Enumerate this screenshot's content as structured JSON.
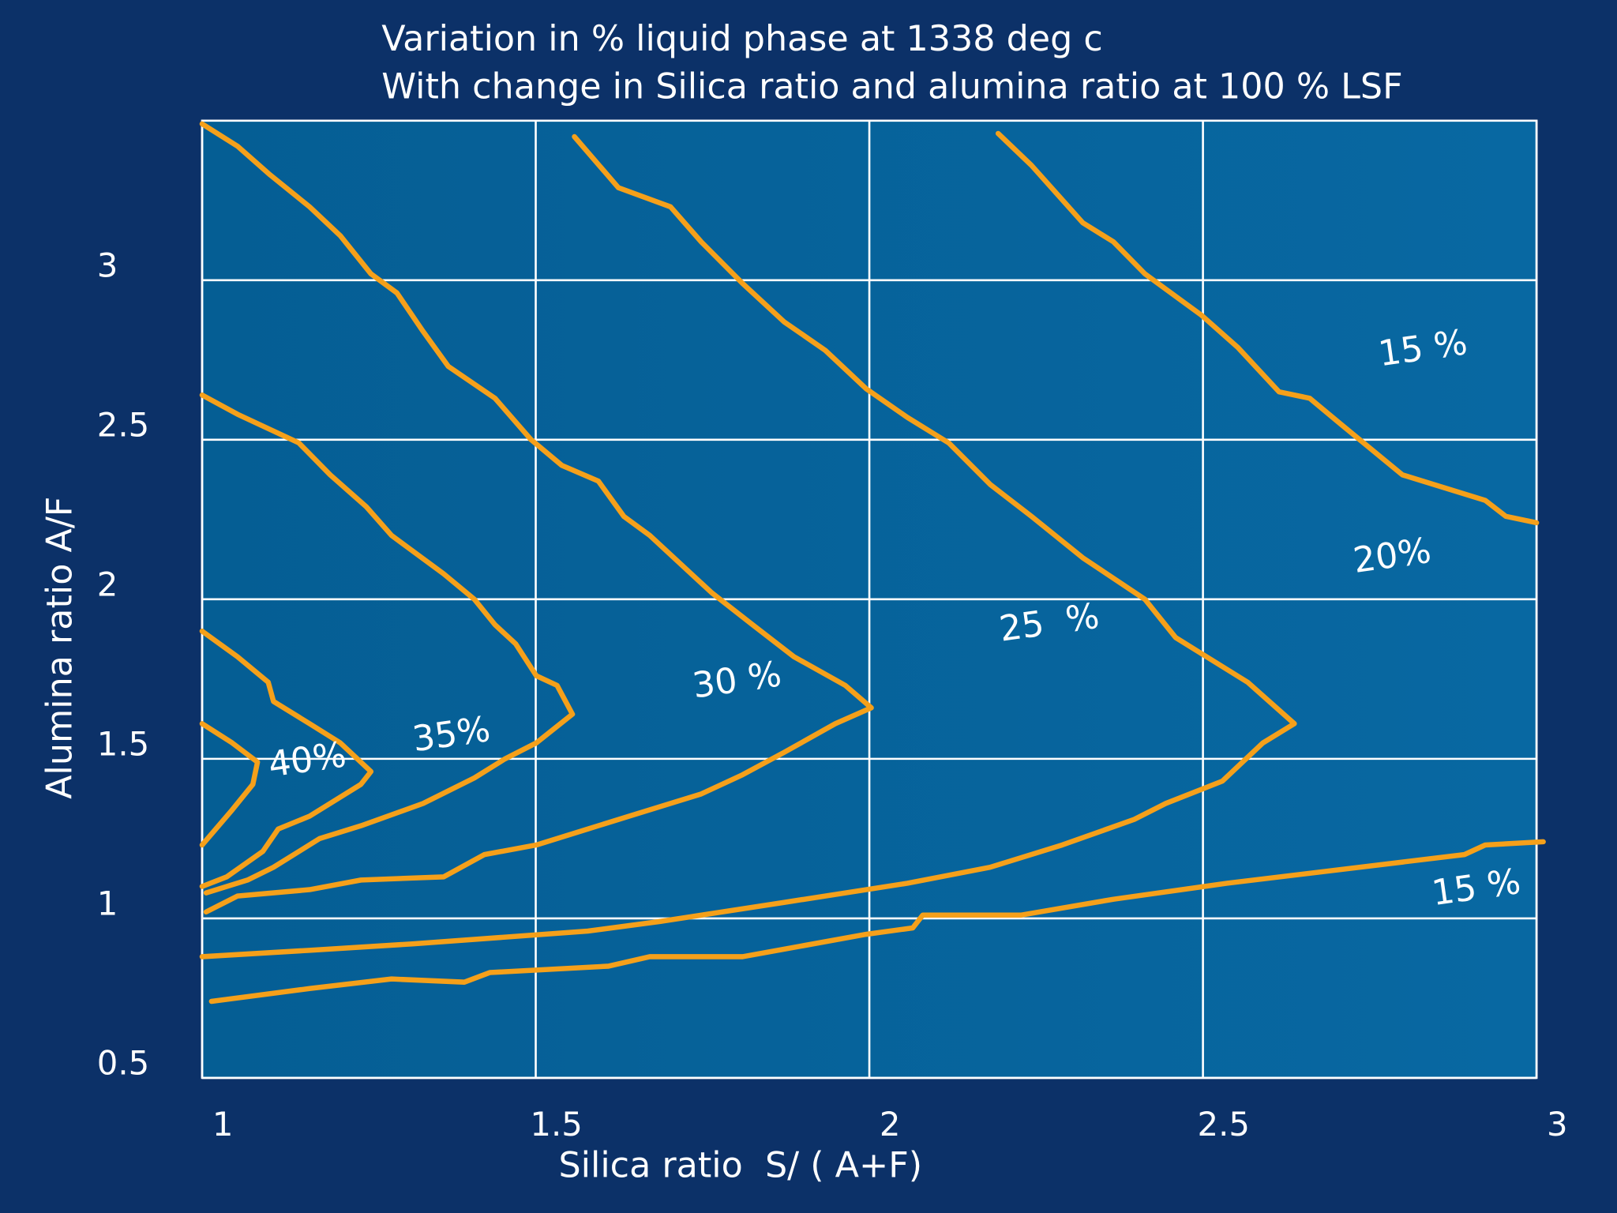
{
  "chart_data": {
    "type": "contour",
    "title": "Variation in % liquid phase at 1338 deg c",
    "subtitle": "With change in Silica ratio and alumina ratio at 100 % LSF",
    "x_label": "Silica ratio  S/ ( A+F)",
    "y_label": "Alumina ratio A/F",
    "xlim": [
      1,
      3
    ],
    "xticks": [
      1,
      1.5,
      2,
      2.5,
      3
    ],
    "ylim": [
      0.5,
      3.5
    ],
    "yticks": [
      0.5,
      1,
      1.5,
      2,
      2.5,
      3
    ],
    "grid": true,
    "series": [
      {
        "color": "#f5a01a",
        "x": [
          1.0,
          1.053,
          1.102,
          1.161,
          1.207,
          1.253,
          1.292,
          1.331,
          1.369,
          1.439,
          1.493,
          1.539,
          1.594,
          1.632,
          1.671,
          1.764,
          1.825,
          1.887,
          1.964,
          2.003,
          1.949,
          1.872,
          1.81,
          1.748,
          1.64,
          1.578,
          1.501,
          1.423,
          1.362,
          1.238,
          1.161,
          1.053,
          1.006
        ],
        "values": [
          3.49,
          3.42,
          3.33,
          3.23,
          3.14,
          3.02,
          2.96,
          2.84,
          2.73,
          2.63,
          2.5,
          2.42,
          2.37,
          2.26,
          2.2,
          2.02,
          1.92,
          1.82,
          1.73,
          1.66,
          1.61,
          1.52,
          1.45,
          1.39,
          1.32,
          1.28,
          1.23,
          1.2,
          1.13,
          1.12,
          1.09,
          1.07,
          1.02
        ]
      },
      {
        "color": "#f5a01a",
        "x": [
          1.0,
          1.053,
          1.145,
          1.192,
          1.246,
          1.284,
          1.362,
          1.408,
          1.439,
          1.47,
          1.501,
          1.532,
          1.555,
          1.501,
          1.454,
          1.408,
          1.331,
          1.238,
          1.176,
          1.107,
          1.068,
          1.006
        ],
        "values": [
          2.64,
          2.58,
          2.49,
          2.39,
          2.29,
          2.2,
          2.08,
          2.0,
          1.92,
          1.86,
          1.76,
          1.73,
          1.64,
          1.55,
          1.5,
          1.44,
          1.36,
          1.29,
          1.25,
          1.16,
          1.12,
          1.08
        ]
      },
      {
        "color": "#f5a01a",
        "x": [
          1.558,
          1.624,
          1.702,
          1.748,
          1.81,
          1.872,
          1.934,
          1.995,
          2.057,
          2.119,
          2.181,
          2.243,
          2.32,
          2.413,
          2.459,
          2.567,
          2.637,
          2.59,
          2.529,
          2.444,
          2.397,
          2.289,
          2.181,
          2.057,
          1.872,
          1.686,
          1.578,
          1.315,
          1.161,
          1.0
        ],
        "values": [
          3.45,
          3.29,
          3.23,
          3.12,
          2.99,
          2.87,
          2.78,
          2.66,
          2.57,
          2.49,
          2.36,
          2.26,
          2.13,
          2.0,
          1.88,
          1.74,
          1.61,
          1.55,
          1.43,
          1.36,
          1.31,
          1.23,
          1.16,
          1.11,
          1.05,
          0.99,
          0.96,
          0.92,
          0.9,
          0.88
        ]
      },
      {
        "color": "#f5a01a",
        "x": [
          2.193,
          2.243,
          2.32,
          2.366,
          2.413,
          2.498,
          2.552,
          2.614,
          2.66,
          2.706,
          2.799,
          2.923,
          2.954,
          3.0
        ],
        "values": [
          3.46,
          3.36,
          3.18,
          3.12,
          3.02,
          2.89,
          2.79,
          2.65,
          2.63,
          2.55,
          2.39,
          2.31,
          2.26,
          2.24
        ]
      },
      {
        "color": "#f5a01a",
        "x": [
          1.014,
          1.161,
          1.284,
          1.393,
          1.431,
          1.609,
          1.671,
          1.81,
          1.995,
          2.065,
          2.08,
          2.227,
          2.366,
          2.536,
          2.892,
          2.923,
          3.01
        ],
        "values": [
          0.74,
          0.78,
          0.81,
          0.8,
          0.83,
          0.85,
          0.88,
          0.88,
          0.95,
          0.97,
          1.01,
          1.01,
          1.06,
          1.11,
          1.2,
          1.23,
          1.24
        ]
      },
      {
        "color": "#f5a01a",
        "x": [
          1.0,
          1.053,
          1.099,
          1.107,
          1.161,
          1.207,
          1.253,
          1.238,
          1.161,
          1.114,
          1.091,
          1.037,
          1.0
        ],
        "values": [
          1.9,
          1.82,
          1.74,
          1.68,
          1.61,
          1.55,
          1.46,
          1.42,
          1.32,
          1.28,
          1.21,
          1.13,
          1.1
        ]
      },
      {
        "color": "#f5a01a",
        "x": [
          1.0,
          1.045,
          1.083,
          1.076,
          1.045,
          1.0
        ],
        "values": [
          1.61,
          1.55,
          1.49,
          1.42,
          1.34,
          1.23
        ]
      }
    ],
    "annotations": [
      {
        "text": "15 %",
        "x": 2.83,
        "y": 2.78
      },
      {
        "text": "15 %",
        "x": 2.91,
        "y": 1.09
      },
      {
        "text": "20%",
        "x": 2.784,
        "y": 2.13
      },
      {
        "text": "25  %",
        "x": 2.27,
        "y": 1.92
      },
      {
        "text": "30 %",
        "x": 1.802,
        "y": 1.74
      },
      {
        "text": "35%",
        "x": 1.374,
        "y": 1.57
      },
      {
        "text": "40%",
        "x": 1.158,
        "y": 1.49
      }
    ]
  }
}
